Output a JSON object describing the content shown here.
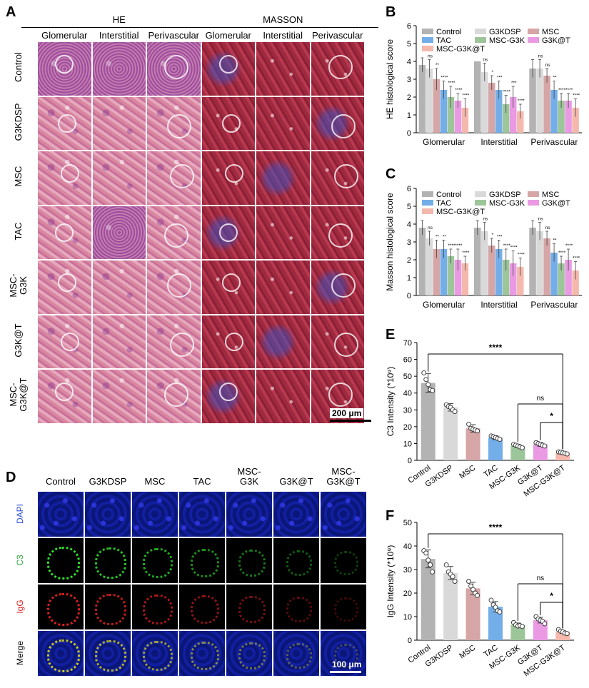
{
  "panels": {
    "A": {
      "letter": "A",
      "groups": [
        "HE",
        "MASSON"
      ],
      "columns": [
        "Glomerular",
        "Interstitial",
        "Perivascular",
        "Glomerular",
        "Interstitial",
        "Perivascular"
      ],
      "rows": [
        "Control",
        "G3KDSP",
        "MSC",
        "TAC",
        "MSC-G3K",
        "G3K@T",
        "MSC-G3K@T"
      ],
      "row_labels_display": [
        "Control",
        "G3KDSP",
        "MSC",
        "TAC",
        "MSC-\nG3K",
        "G3K@T",
        "MSC-\nG3K@T"
      ],
      "scale_bar": "200 μm"
    },
    "D": {
      "letter": "D",
      "columns": [
        "Control",
        "G3KDSP",
        "MSC",
        "TAC",
        "MSC-\nG3K",
        "G3K@T",
        "MSC-\nG3K@T"
      ],
      "rows": [
        "DAPI",
        "C3",
        "IgG",
        "Merge"
      ],
      "row_colors": [
        "#2f4fd6",
        "#2fa83a",
        "#d62020",
        "#000000"
      ],
      "scale_bar": "100 μm"
    }
  },
  "colors": {
    "Control": "#b3b3b3",
    "G3KDSP": "#d9d9d9",
    "MSC": "#d6a5a5",
    "TAC": "#73aee8",
    "MSC-G3K": "#9cc59a",
    "G3K@T": "#e99ae3",
    "MSC-G3K@T": "#f5b8ad"
  },
  "chart_data": [
    {
      "id": "B",
      "letter": "B",
      "type": "bar",
      "ylabel": "HE histological score",
      "ylim": [
        0,
        6
      ],
      "yticks": [
        "0",
        "1",
        "2",
        "3",
        "4",
        "5",
        "6"
      ],
      "categories": [
        "Glomerular",
        "Interstitial",
        "Perivascular"
      ],
      "legend": [
        "Control",
        "G3KDSP",
        "MSC",
        "TAC",
        "MSC-G3K",
        "G3K@T",
        "MSC-G3K@T"
      ],
      "series": [
        {
          "name": "Control",
          "values": [
            3.8,
            4.0,
            3.6
          ],
          "err": [
            0.4,
            0.0,
            0.5
          ]
        },
        {
          "name": "G3KDSP",
          "values": [
            3.6,
            3.4,
            3.6
          ],
          "err": [
            0.5,
            0.5,
            0.5
          ]
        },
        {
          "name": "MSC",
          "values": [
            3.0,
            2.8,
            3.2
          ],
          "err": [
            0.6,
            0.4,
            0.4
          ]
        },
        {
          "name": "TAC",
          "values": [
            2.4,
            2.4,
            2.4
          ],
          "err": [
            0.5,
            0.5,
            0.5
          ]
        },
        {
          "name": "MSC-G3K",
          "values": [
            2.0,
            1.6,
            1.8
          ],
          "err": [
            0.6,
            0.5,
            0.4
          ]
        },
        {
          "name": "G3K@T",
          "values": [
            1.8,
            2.0,
            1.8
          ],
          "err": [
            0.4,
            0.6,
            0.4
          ]
        },
        {
          "name": "MSC-G3K@T",
          "values": [
            1.4,
            1.2,
            1.4
          ],
          "err": [
            0.5,
            0.4,
            0.5
          ]
        }
      ],
      "sig": [
        [
          "ns",
          "**",
          "****",
          "****",
          "****",
          "****"
        ],
        [
          "ns",
          "*",
          "***",
          "****",
          "***",
          "****"
        ],
        [
          "ns",
          "ns",
          "**",
          "****",
          "****",
          "****"
        ]
      ]
    },
    {
      "id": "C",
      "letter": "C",
      "type": "bar",
      "ylabel": "Masson histological score",
      "ylim": [
        0,
        6
      ],
      "yticks": [
        "0",
        "1",
        "2",
        "3",
        "4",
        "5",
        "6"
      ],
      "categories": [
        "Glomerular",
        "Interstitial",
        "Perivascular"
      ],
      "legend": [
        "Control",
        "G3KDSP",
        "MSC",
        "TAC",
        "MSC-G3K",
        "G3K@T",
        "MSC-G3K@T"
      ],
      "series": [
        {
          "name": "Control",
          "values": [
            3.8,
            3.8,
            3.8
          ],
          "err": [
            0.4,
            0.4,
            0.4
          ]
        },
        {
          "name": "G3KDSP",
          "values": [
            3.2,
            3.6,
            3.6
          ],
          "err": [
            0.4,
            0.5,
            0.5
          ]
        },
        {
          "name": "MSC",
          "values": [
            2.6,
            2.8,
            3.2
          ],
          "err": [
            0.5,
            0.4,
            0.4
          ]
        },
        {
          "name": "TAC",
          "values": [
            2.6,
            2.6,
            2.4
          ],
          "err": [
            0.5,
            0.5,
            0.5
          ]
        },
        {
          "name": "MSC-G3K",
          "values": [
            2.2,
            2.0,
            1.8
          ],
          "err": [
            0.4,
            0.6,
            0.4
          ]
        },
        {
          "name": "G3K@T",
          "values": [
            2.0,
            1.8,
            2.0
          ],
          "err": [
            0.6,
            0.7,
            0.6
          ]
        },
        {
          "name": "MSC-G3K@T",
          "values": [
            1.8,
            1.6,
            1.4
          ],
          "err": [
            0.4,
            0.5,
            0.5
          ]
        }
      ],
      "sig": [
        [
          "ns",
          "**",
          "**",
          "****",
          "****",
          "****"
        ],
        [
          "ns",
          "*",
          "***",
          "****",
          "****",
          "****"
        ],
        [
          "ns",
          "ns",
          "**",
          "****",
          "****",
          "****"
        ]
      ]
    },
    {
      "id": "E",
      "letter": "E",
      "type": "bar",
      "ylabel": "C3 Intensity (*10⁹)",
      "ylim": [
        0,
        70
      ],
      "yticks": [
        "0",
        "10",
        "20",
        "30",
        "40",
        "50",
        "60",
        "70"
      ],
      "categories": [
        "Control",
        "G3KDSP",
        "MSC",
        "TAC",
        "MSC-G3K",
        "G3K@T",
        "MSC-G3K@T"
      ],
      "values": [
        46,
        31.5,
        19,
        13.5,
        8.5,
        9.5,
        4.5
      ],
      "err": [
        5.5,
        2.2,
        2.2,
        1.2,
        1.0,
        1.2,
        0.8
      ],
      "points": [
        [
          52,
          48,
          45,
          42,
          41.5
        ],
        [
          33,
          32,
          31.5,
          30,
          29
        ],
        [
          21.5,
          19,
          18.5,
          18,
          17.5
        ],
        [
          14.5,
          14,
          13.5,
          13,
          12.5
        ],
        [
          9.5,
          9,
          8.5,
          8,
          7.5
        ],
        [
          10.5,
          10,
          9.5,
          9,
          8.5
        ],
        [
          5,
          4.8,
          4.5,
          4.2,
          3.8
        ]
      ],
      "comparisons": [
        {
          "from": "Control",
          "to": "MSC-G3K@T",
          "label": "****"
        },
        {
          "from": "MSC-G3K",
          "to": "MSC-G3K@T",
          "label": "ns"
        },
        {
          "from": "G3K@T",
          "to": "MSC-G3K@T",
          "label": "*"
        }
      ]
    },
    {
      "id": "F",
      "letter": "F",
      "type": "bar",
      "ylabel": "IgG Intensity (*10⁹)",
      "ylim": [
        0,
        50
      ],
      "yticks": [
        "0",
        "10",
        "20",
        "30",
        "40",
        "50"
      ],
      "categories": [
        "Control",
        "G3KDSP",
        "MSC",
        "TAC",
        "MSC-G3K",
        "G3K@T",
        "MSC-G3K@T"
      ],
      "values": [
        34.5,
        28.5,
        22,
        14.2,
        6.5,
        8.5,
        3.5
      ],
      "err": [
        3.8,
        2.8,
        2.6,
        2.2,
        0.8,
        1.2,
        0.6
      ],
      "points": [
        [
          38,
          37,
          34,
          32,
          29
        ],
        [
          32,
          29,
          28,
          27,
          25
        ],
        [
          25,
          23,
          21.5,
          20,
          19
        ],
        [
          17,
          15,
          14,
          12.5,
          12
        ],
        [
          7.5,
          6.5,
          6,
          6.2,
          5.8
        ],
        [
          10,
          9,
          8.5,
          8,
          7
        ],
        [
          4.5,
          3.8,
          3.5,
          3,
          2.8
        ]
      ],
      "comparisons": [
        {
          "from": "Control",
          "to": "MSC-G3K@T",
          "label": "****"
        },
        {
          "from": "MSC-G3K",
          "to": "MSC-G3K@T",
          "label": "ns"
        },
        {
          "from": "G3K@T",
          "to": "MSC-G3K@T",
          "label": "*"
        }
      ]
    }
  ]
}
